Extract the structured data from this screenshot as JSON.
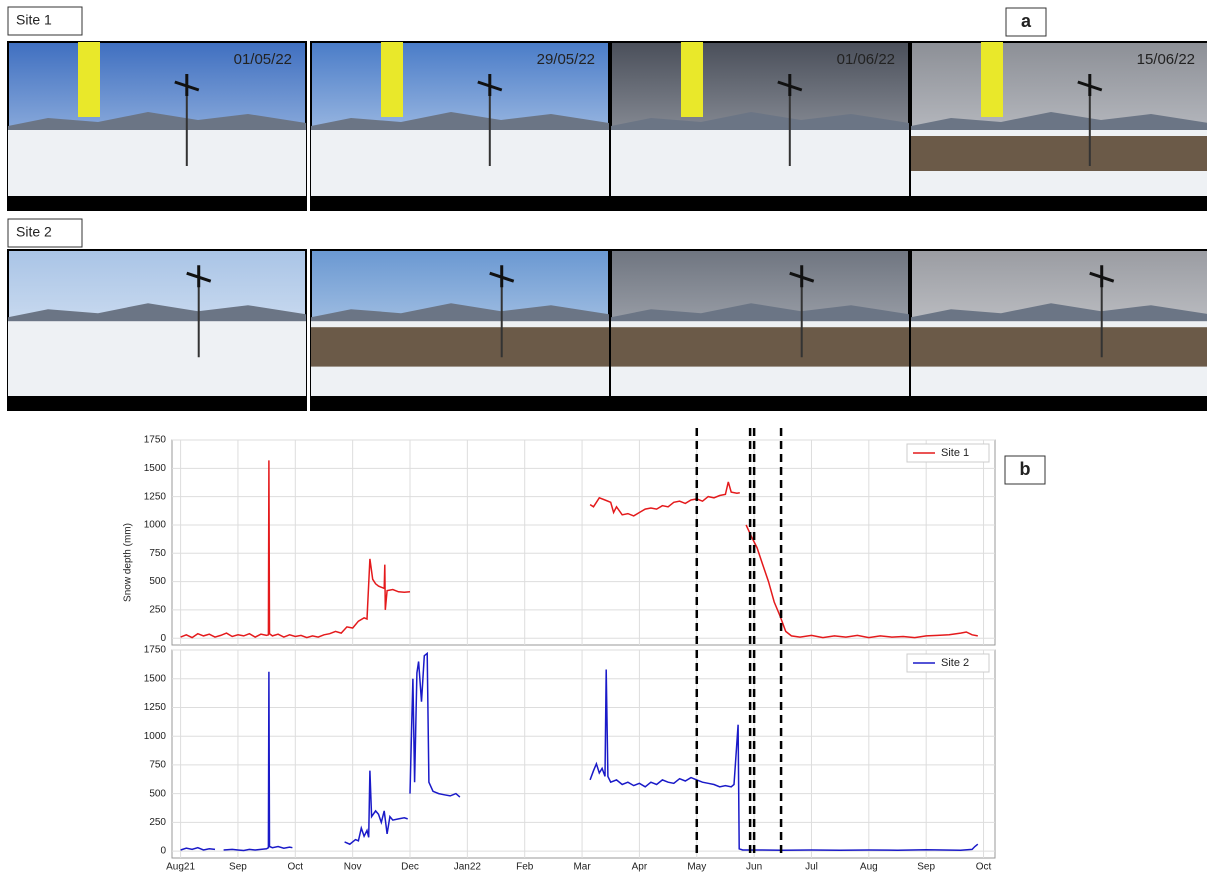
{
  "figure": {
    "panel_a": "a",
    "panel_b": "b",
    "rows": [
      {
        "label": "Site 1",
        "dates": [
          "01/05/22",
          "29/05/22",
          "01/06/22",
          "15/06/22"
        ]
      },
      {
        "label": "Site 2"
      }
    ]
  },
  "chart_data": [
    {
      "type": "line",
      "ylabel": "Snow depth (mm)",
      "ylim": [
        -60,
        1750
      ],
      "yticks": [
        0,
        250,
        500,
        750,
        1000,
        1250,
        1500,
        1750
      ],
      "xlim": [
        -0.15,
        14.2
      ],
      "xticks": [
        0,
        1,
        2,
        3,
        4,
        5,
        6,
        7,
        8,
        9,
        10,
        11,
        12,
        13,
        14
      ],
      "grid": true,
      "legend": "upper right",
      "vlines": [
        9,
        9.93,
        10,
        10.47
      ],
      "x": [
        0,
        0.1,
        0.2,
        0.3,
        0.4,
        0.5,
        0.6,
        0.7,
        0.8,
        0.9,
        1.0,
        1.1,
        1.2,
        1.3,
        1.4,
        1.5,
        1.53,
        1.54,
        1.55,
        1.6,
        1.7,
        1.8,
        1.9,
        2.0,
        2.1,
        2.2,
        2.3,
        2.4,
        2.5,
        2.6,
        2.7,
        2.8,
        2.9,
        3.0,
        3.1,
        3.2,
        3.25,
        3.3,
        3.35,
        3.4,
        3.45,
        3.55,
        3.56,
        3.57,
        3.6,
        3.7,
        3.8,
        3.9,
        4.0,
        5.5,
        7.14,
        7.2,
        7.3,
        7.4,
        7.5,
        7.55,
        7.6,
        7.7,
        7.8,
        7.9,
        8.0,
        8.1,
        8.2,
        8.3,
        8.4,
        8.5,
        8.6,
        8.7,
        8.8,
        8.9,
        9.0,
        9.1,
        9.2,
        9.3,
        9.4,
        9.5,
        9.55,
        9.6,
        9.7,
        9.75,
        9.8,
        9.86,
        9.95,
        10.05,
        10.15,
        10.25,
        10.35,
        10.45,
        10.55,
        10.65,
        10.8,
        11.0,
        11.2,
        11.4,
        11.6,
        11.8,
        12.0,
        12.2,
        12.4,
        12.6,
        12.8,
        13.0,
        13.2,
        13.4,
        13.6,
        13.7,
        13.8,
        13.9
      ],
      "series": [
        {
          "name": "Site 1",
          "color": "#e41a1c",
          "values": [
            10,
            30,
            5,
            40,
            20,
            35,
            10,
            25,
            45,
            15,
            30,
            20,
            40,
            10,
            35,
            25,
            30,
            1570,
            40,
            20,
            35,
            10,
            30,
            15,
            25,
            5,
            20,
            10,
            30,
            40,
            60,
            45,
            100,
            90,
            150,
            180,
            170,
            700,
            520,
            480,
            460,
            440,
            650,
            250,
            420,
            430,
            410,
            405,
            410,
            null,
            1180,
            1160,
            1240,
            1220,
            1200,
            1110,
            1160,
            1090,
            1100,
            1080,
            1110,
            1140,
            1150,
            1140,
            1170,
            1160,
            1200,
            1210,
            1190,
            1220,
            1230,
            1210,
            1250,
            1240,
            1260,
            1270,
            1380,
            1290,
            1280,
            1285,
            null,
            1000,
            900,
            800,
            650,
            500,
            320,
            200,
            60,
            20,
            10,
            25,
            5,
            20,
            10,
            25,
            5,
            20,
            10,
            15,
            5,
            20,
            25,
            30,
            45,
            55,
            30,
            20
          ]
        }
      ]
    },
    {
      "type": "line",
      "ylim": [
        -60,
        1750
      ],
      "yticks": [
        0,
        250,
        500,
        750,
        1000,
        1250,
        1500,
        1750
      ],
      "xlim": [
        -0.15,
        14.2
      ],
      "xticks": [
        {
          "value": 0,
          "label": "Aug21"
        },
        {
          "value": 1,
          "label": "Sep"
        },
        {
          "value": 2,
          "label": "Oct"
        },
        {
          "value": 3,
          "label": "Nov"
        },
        {
          "value": 4,
          "label": "Dec"
        },
        {
          "value": 5,
          "label": "Jan22"
        },
        {
          "value": 6,
          "label": "Feb"
        },
        {
          "value": 7,
          "label": "Mar"
        },
        {
          "value": 8,
          "label": "Apr"
        },
        {
          "value": 9,
          "label": "May"
        },
        {
          "value": 10,
          "label": "Jun"
        },
        {
          "value": 11,
          "label": "Jul"
        },
        {
          "value": 12,
          "label": "Aug"
        },
        {
          "value": 13,
          "label": "Sep"
        },
        {
          "value": 14,
          "label": "Oct"
        }
      ],
      "grid": true,
      "legend": "upper right",
      "vlines": [
        9,
        9.93,
        10,
        10.47
      ],
      "x": [
        0,
        0.1,
        0.2,
        0.3,
        0.4,
        0.5,
        0.6,
        0.68,
        0.75,
        0.9,
        1.0,
        1.1,
        1.2,
        1.3,
        1.4,
        1.5,
        1.53,
        1.54,
        1.55,
        1.6,
        1.7,
        1.8,
        1.9,
        1.95,
        2.4,
        2.86,
        2.95,
        3.05,
        3.1,
        3.15,
        3.2,
        3.25,
        3.28,
        3.3,
        3.33,
        3.4,
        3.45,
        3.5,
        3.55,
        3.6,
        3.65,
        3.7,
        3.8,
        3.9,
        3.96,
        3.98,
        4.0,
        4.03,
        4.05,
        4.08,
        4.12,
        4.15,
        4.2,
        4.25,
        4.3,
        4.33,
        4.4,
        4.5,
        4.6,
        4.7,
        4.8,
        4.87,
        6.0,
        7.14,
        7.2,
        7.25,
        7.3,
        7.35,
        7.4,
        7.42,
        7.45,
        7.5,
        7.6,
        7.7,
        7.8,
        7.9,
        8.0,
        8.1,
        8.2,
        8.3,
        8.4,
        8.5,
        8.6,
        8.7,
        8.8,
        8.9,
        9.0,
        9.1,
        9.2,
        9.3,
        9.4,
        9.5,
        9.6,
        9.65,
        9.72,
        9.74,
        9.8,
        10.0,
        10.5,
        11,
        11.5,
        12,
        12.5,
        13,
        13.3,
        13.6,
        13.8,
        13.85,
        13.9
      ],
      "series": [
        {
          "name": "Site 2",
          "color": "#1a1ac8",
          "values": [
            10,
            25,
            15,
            30,
            10,
            20,
            15,
            null,
            10,
            15,
            10,
            5,
            15,
            10,
            15,
            20,
            30,
            1560,
            40,
            30,
            40,
            25,
            35,
            30,
            null,
            80,
            60,
            100,
            90,
            200,
            130,
            180,
            120,
            700,
            300,
            350,
            320,
            250,
            350,
            150,
            300,
            270,
            280,
            290,
            280,
            null,
            500,
            1100,
            1500,
            600,
            1550,
            1650,
            1300,
            1700,
            1720,
            600,
            520,
            500,
            490,
            480,
            500,
            470,
            null,
            620,
            700,
            760,
            680,
            720,
            650,
            1580,
            650,
            600,
            620,
            580,
            600,
            570,
            590,
            560,
            600,
            580,
            620,
            600,
            590,
            630,
            610,
            640,
            620,
            600,
            590,
            580,
            560,
            570,
            560,
            580,
            1100,
            20,
            10,
            10,
            8,
            10,
            8,
            10,
            8,
            12,
            10,
            8,
            15,
            40,
            60
          ]
        }
      ]
    }
  ]
}
